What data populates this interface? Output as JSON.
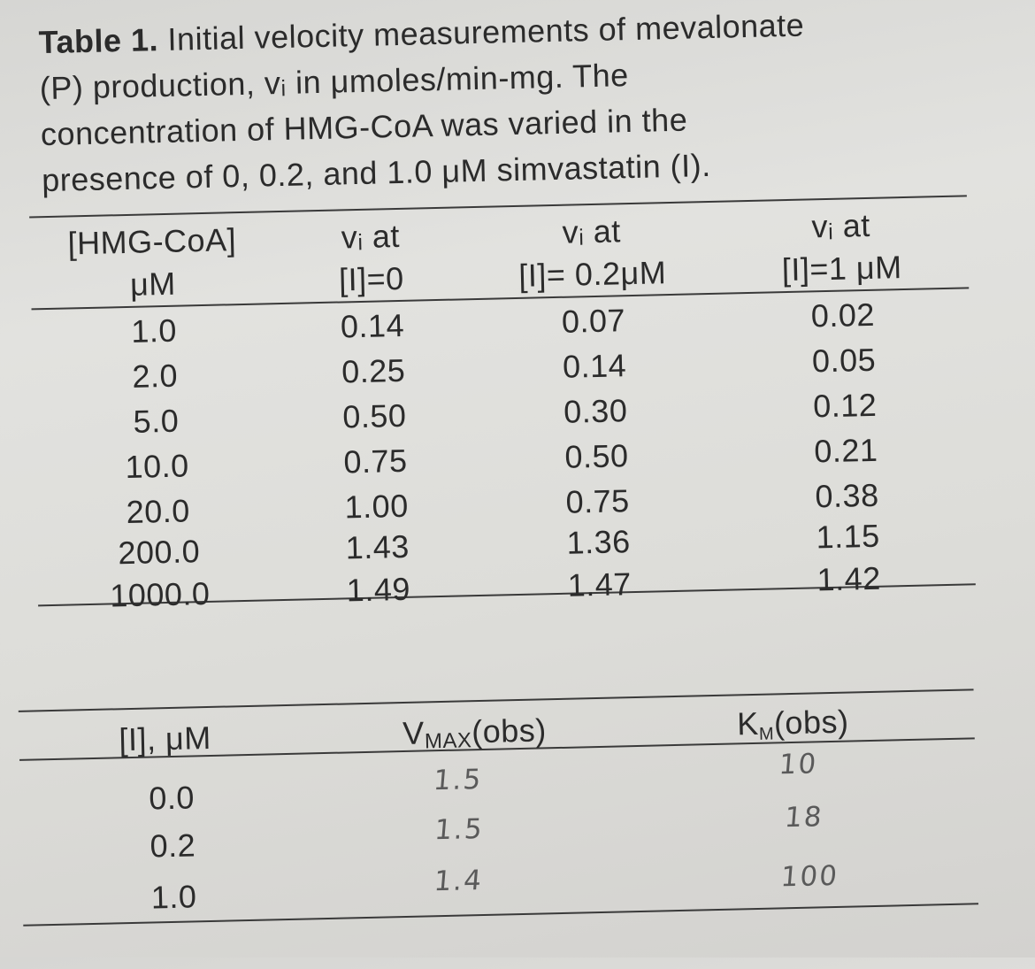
{
  "caption": {
    "label": "Table 1.",
    "lines": [
      " Initial velocity measurements of mevalonate",
      "(P) production, vᵢ in μmoles/min-mg. The",
      "concentration of HMG-CoA was varied in the",
      "presence of 0, 0.2, and 1.0 μM simvastatin (I)."
    ]
  },
  "table1": {
    "headers": {
      "col1": [
        "[HMG-CoA]",
        "μM"
      ],
      "col2": [
        "vᵢ at",
        "[I]=0"
      ],
      "col3": [
        "vᵢ at",
        "[I]= 0.2μM"
      ],
      "col4": [
        "vᵢ at",
        "[I]=1 μM"
      ]
    },
    "rows": [
      {
        "hmg": "1.0",
        "v0": "0.14",
        "v02": "0.07",
        "v1": "0.02"
      },
      {
        "hmg": "2.0",
        "v0": "0.25",
        "v02": "0.14",
        "v1": "0.05"
      },
      {
        "hmg": "5.0",
        "v0": "0.50",
        "v02": "0.30",
        "v1": "0.12"
      },
      {
        "hmg": "10.0",
        "v0": "0.75",
        "v02": "0.50",
        "v1": "0.21"
      },
      {
        "hmg": "20.0",
        "v0": "1.00",
        "v02": "0.75",
        "v1": "0.38"
      },
      {
        "hmg": "200.0",
        "v0": "1.43",
        "v02": "1.36",
        "v1": "1.15"
      },
      {
        "hmg": "1000.0",
        "v0": "1.49",
        "v02": "1.47",
        "v1": "1.42"
      }
    ]
  },
  "table2": {
    "headers": {
      "col1": "[I], μM",
      "col2_main": "V",
      "col2_sub": "MAX",
      "col2_tail": "(obs)",
      "col3_main": "K",
      "col3_sub": "M",
      "col3_tail": "(obs)"
    },
    "rows": [
      {
        "i": "0.0",
        "vmax": "1.5",
        "km": "10"
      },
      {
        "i": "0.2",
        "vmax": "1.5",
        "km": "18"
      },
      {
        "i": "1.0",
        "vmax": "1.4",
        "km": "100"
      }
    ]
  }
}
